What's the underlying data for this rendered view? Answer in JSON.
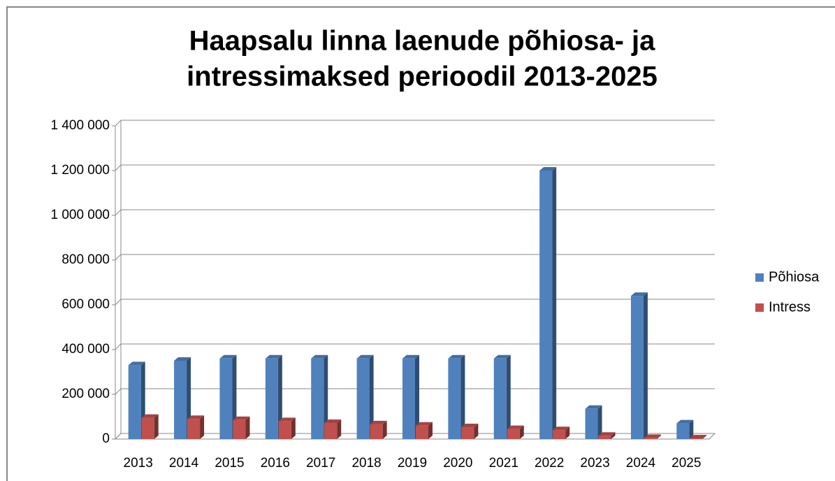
{
  "chart_data": {
    "type": "bar3d",
    "title": [
      "Haapsalu linna laenude põhiosa- ja",
      "intressimaksed perioodil 2013-2025"
    ],
    "categories": [
      "2013",
      "2014",
      "2015",
      "2016",
      "2017",
      "2018",
      "2019",
      "2020",
      "2021",
      "2022",
      "2023",
      "2024",
      "2025"
    ],
    "series": [
      {
        "name": "Põhiosa",
        "color": "#4f81bd",
        "values": [
          330000,
          350000,
          360000,
          360000,
          360000,
          360000,
          360000,
          360000,
          360000,
          1200000,
          135000,
          640000,
          70000
        ]
      },
      {
        "name": "Intress",
        "color": "#c0504d",
        "values": [
          95000,
          90000,
          85000,
          80000,
          72000,
          66000,
          60000,
          53000,
          45000,
          40000,
          15000,
          5000,
          3000
        ]
      }
    ],
    "ylim": [
      0,
      1400000
    ],
    "yticks": [
      0,
      {
        "value": 200000,
        "label": "200 000"
      },
      {
        "value": 400000,
        "label": "400 000"
      },
      {
        "value": 600000,
        "label": "600 000"
      },
      {
        "value": 800000,
        "label": "800 000"
      },
      {
        "value": 1000000,
        "label": "1 000 000"
      },
      {
        "value": 1200000,
        "label": "1 200 000"
      },
      {
        "value": 1400000,
        "label": "1 400 000"
      }
    ],
    "grid": true,
    "legend": "right"
  }
}
